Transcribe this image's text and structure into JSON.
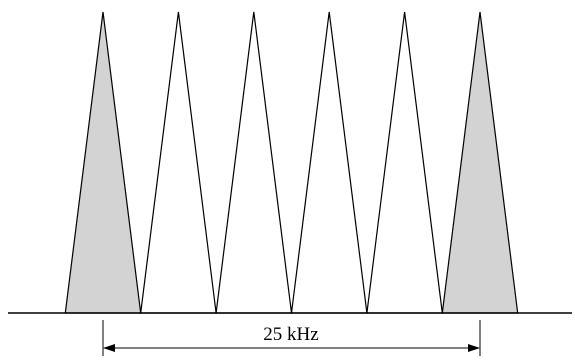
{
  "diagram": {
    "span_label": "25 kHz"
  },
  "channels": [
    {
      "index": 1,
      "filled": true
    },
    {
      "index": 2,
      "filled": false
    },
    {
      "index": 3,
      "filled": false
    },
    {
      "index": 4,
      "filled": false
    },
    {
      "index": 5,
      "filled": false
    },
    {
      "index": 6,
      "filled": true
    }
  ],
  "colors": {
    "stroke": "#000000",
    "filled_channel": "#d3d3d3",
    "empty_channel": "#ffffff",
    "background": "#ffffff"
  }
}
